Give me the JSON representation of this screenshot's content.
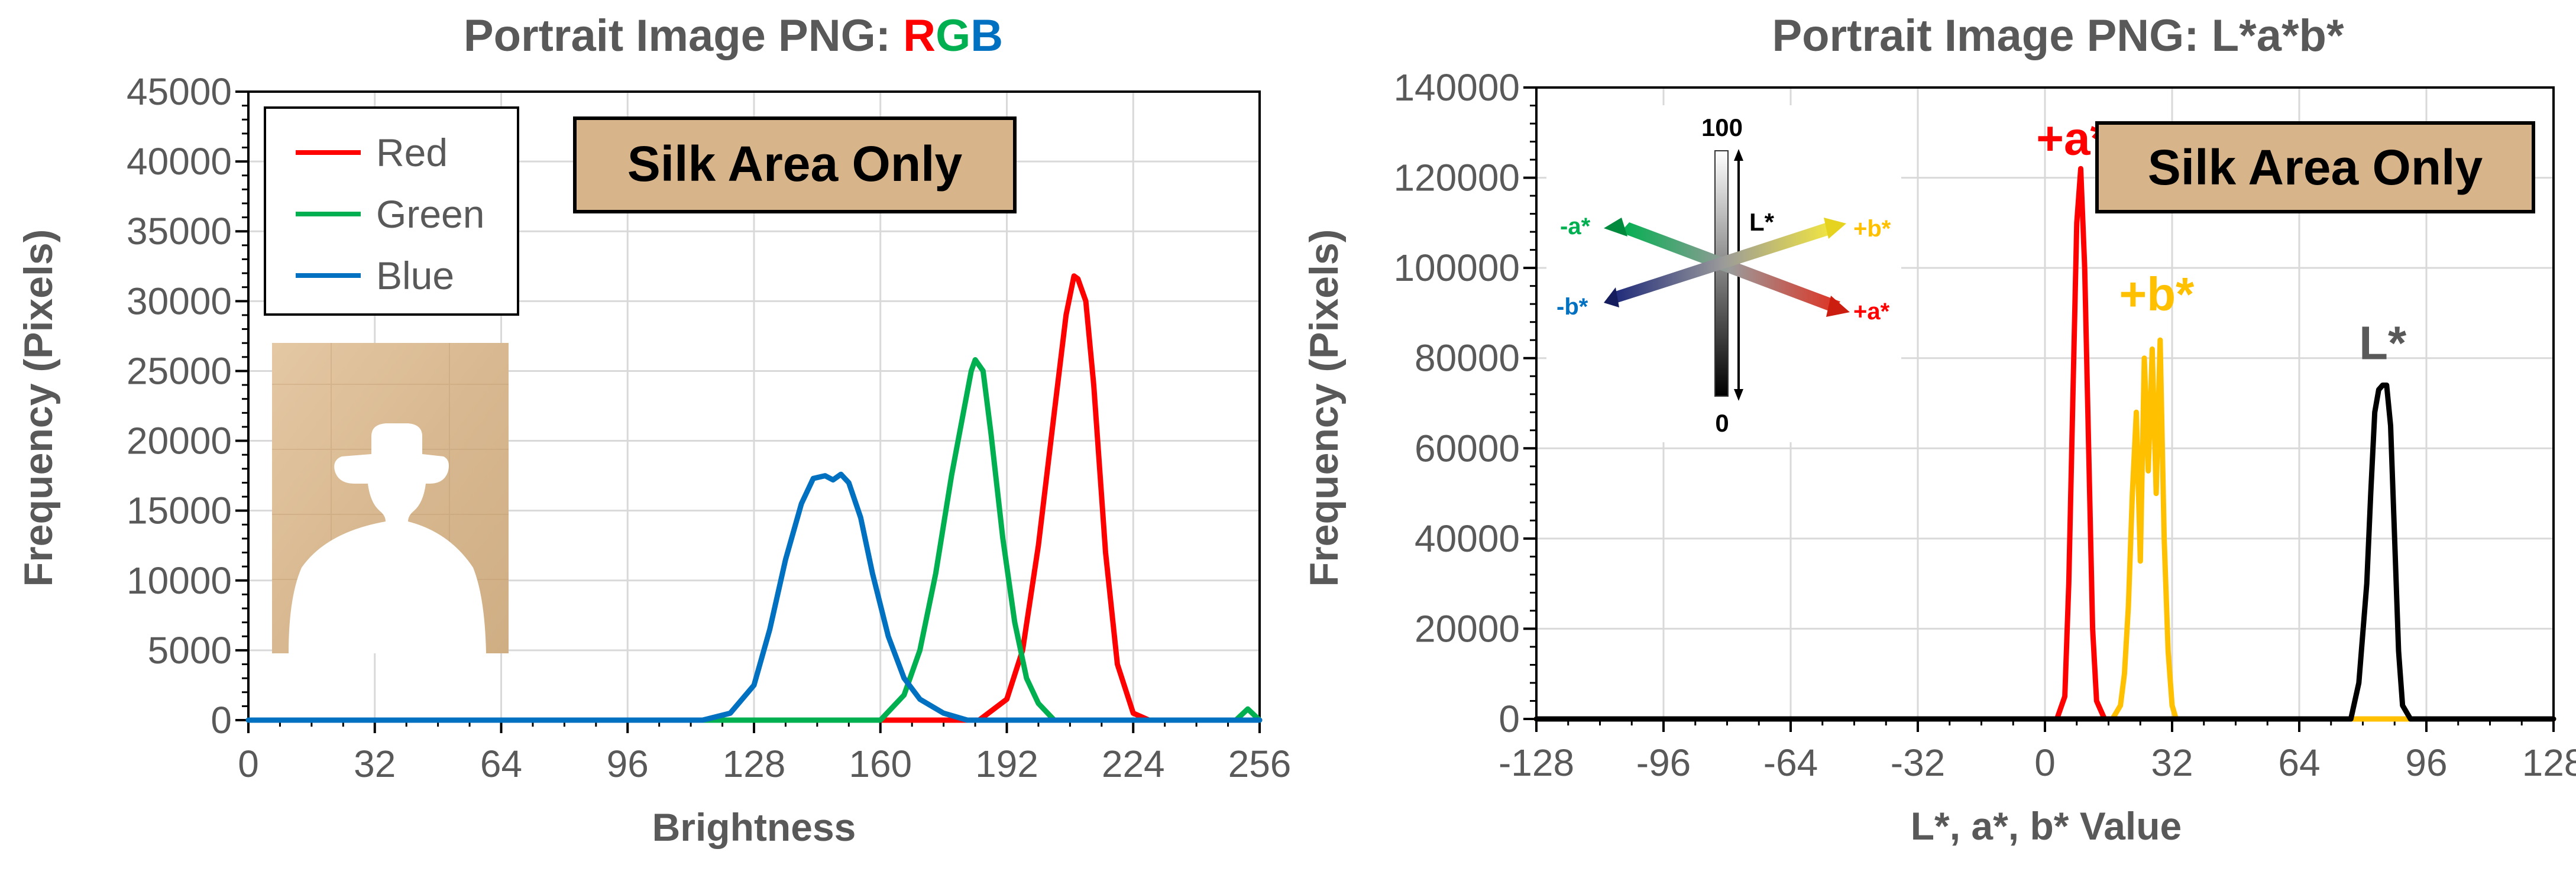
{
  "charts": {
    "rgb": {
      "title_prefix": "Portrait Image PNG: ",
      "title_letters": [
        {
          "text": "R",
          "color": "#ff0000"
        },
        {
          "text": "G",
          "color": "#00b050"
        },
        {
          "text": "B",
          "color": "#0070c0"
        }
      ],
      "badge": "Silk Area Only",
      "badge_fill": "#d8b48a",
      "inset_image": "silk-portrait-silhouette"
    },
    "lab": {
      "title": "Portrait Image PNG: L*a*b*",
      "badge": "Silk Area Only",
      "badge_fill": "#d8b48a",
      "peak_labels": [
        {
          "text": "+a*",
          "color": "#ff0000",
          "series": "a*"
        },
        {
          "text": "+b*",
          "color": "#ffc000",
          "series": "b*"
        },
        {
          "text": "L*",
          "color": "#595959",
          "series": "L*"
        }
      ],
      "diagram": {
        "top": "100",
        "bottom": "0",
        "l_axis": "L*",
        "pos_a": "+a*",
        "neg_a": "-a*",
        "pos_b": "+b*",
        "neg_b": "-b*",
        "colors": {
          "pos_a": "#ff0000",
          "neg_a": "#00b050",
          "pos_b": "#ffc000",
          "neg_b": "#0070c0"
        }
      }
    }
  },
  "chart_data": [
    {
      "type": "line",
      "title": "Portrait Image PNG: RGB",
      "xlabel": "Brightness",
      "ylabel": "Frequency (Pixels)",
      "xlim": [
        0,
        256
      ],
      "ylim": [
        0,
        45000
      ],
      "xticks": [
        0,
        32,
        64,
        96,
        128,
        160,
        192,
        224,
        256
      ],
      "yticks": [
        0,
        5000,
        10000,
        15000,
        20000,
        25000,
        30000,
        35000,
        40000,
        45000
      ],
      "grid": true,
      "legend": "top-left",
      "series": [
        {
          "name": "Red",
          "color": "#ff0000",
          "x": [
            0,
            185,
            192,
            196,
            200,
            204,
            207,
            209,
            210,
            212,
            214,
            217,
            220,
            224,
            228,
            256
          ],
          "y": [
            0,
            0,
            1500,
            5000,
            12500,
            22000,
            29000,
            31800,
            31600,
            30000,
            24000,
            12000,
            4000,
            500,
            0,
            0
          ]
        },
        {
          "name": "Green",
          "color": "#00b050",
          "x": [
            0,
            160,
            166,
            170,
            174,
            178,
            181,
            183,
            184,
            186,
            188,
            191,
            194,
            197,
            200,
            204,
            250,
            253,
            256
          ],
          "y": [
            0,
            0,
            1800,
            5000,
            10500,
            17500,
            22000,
            25000,
            25800,
            25000,
            20500,
            13000,
            7000,
            3000,
            1200,
            0,
            0,
            800,
            0
          ]
        },
        {
          "name": "Blue",
          "color": "#0070c0",
          "x": [
            0,
            115,
            122,
            128,
            132,
            136,
            140,
            143,
            146,
            148,
            150,
            152,
            155,
            158,
            162,
            166,
            170,
            176,
            182,
            256
          ],
          "y": [
            0,
            0,
            500,
            2500,
            6500,
            11500,
            15500,
            17300,
            17500,
            17200,
            17600,
            17000,
            14500,
            10500,
            6000,
            3000,
            1500,
            500,
            0,
            0
          ]
        }
      ]
    },
    {
      "type": "line",
      "title": "Portrait Image PNG: L*a*b*",
      "xlabel": "L*, a*, b* Value",
      "ylabel": "Frequency (Pixels)",
      "xlim": [
        -128,
        128
      ],
      "ylim": [
        0,
        140000
      ],
      "xticks": [
        -128,
        -96,
        -64,
        -32,
        0,
        32,
        64,
        96,
        128
      ],
      "yticks": [
        0,
        20000,
        40000,
        60000,
        80000,
        100000,
        120000,
        140000
      ],
      "grid": true,
      "series": [
        {
          "name": "a*",
          "color": "#ff0000",
          "x": [
            -128,
            3,
            5,
            6,
            7,
            8,
            9,
            10,
            11,
            12,
            13,
            15,
            128
          ],
          "y": [
            0,
            0,
            5000,
            30000,
            70000,
            110000,
            122000,
            100000,
            60000,
            20000,
            4000,
            0,
            0
          ]
        },
        {
          "name": "b*",
          "color": "#ffc000",
          "x": [
            -128,
            17,
            19,
            20,
            21,
            22,
            23,
            24,
            25,
            26,
            27,
            28,
            29,
            30,
            31,
            32,
            33,
            128
          ],
          "y": [
            0,
            0,
            3000,
            10000,
            25000,
            50000,
            68000,
            35000,
            80000,
            55000,
            82000,
            50000,
            84000,
            40000,
            15000,
            3000,
            0,
            0
          ]
        },
        {
          "name": "L*",
          "color": "#000000",
          "x": [
            -128,
            77,
            79,
            81,
            82,
            83,
            84,
            85,
            86,
            87,
            88,
            89,
            90,
            92,
            128
          ],
          "y": [
            0,
            0,
            8000,
            30000,
            50000,
            68000,
            73000,
            74000,
            74000,
            65000,
            40000,
            15000,
            3000,
            0,
            0
          ]
        }
      ]
    }
  ]
}
